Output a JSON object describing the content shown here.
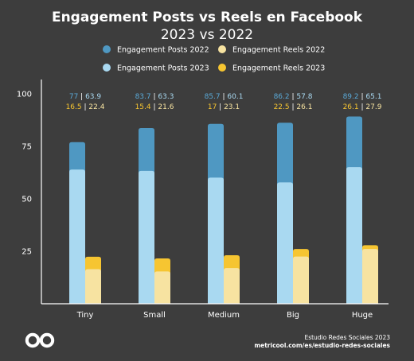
{
  "chart_data": {
    "type": "bar",
    "title": "Engagement Posts vs Reels en Facebook",
    "subtitle": "2023 vs 2022",
    "categories": [
      "Tiny",
      "Small",
      "Medium",
      "Big",
      "Huge"
    ],
    "ylim": [
      0,
      100
    ],
    "yticks": [
      25,
      50,
      75,
      100
    ],
    "series": [
      {
        "name": "Engagement Posts 2022",
        "values": [
          77,
          83.7,
          85.7,
          86.2,
          89.2
        ],
        "labels": [
          "77",
          "83.7",
          "85.7",
          "86.2",
          "89.2"
        ],
        "color": "#4f98c2",
        "group": "posts",
        "layer": "back"
      },
      {
        "name": "Engagement Posts 2023",
        "values": [
          63.9,
          63.3,
          60.1,
          57.8,
          65.1
        ],
        "labels": [
          "63.9",
          "63.3",
          "60.1",
          "57.8",
          "65.1"
        ],
        "color": "#a9d9f1",
        "group": "posts",
        "layer": "front"
      },
      {
        "name": "Engagement Reels 2022",
        "values": [
          16.5,
          15.4,
          17,
          22.5,
          26.1
        ],
        "labels": [
          "16.5",
          "15.4",
          "17",
          "22.5",
          "26.1"
        ],
        "color": "#f7e3a1",
        "group": "reels",
        "layer": "front"
      },
      {
        "name": "Engagement Reels 2023",
        "values": [
          22.4,
          21.6,
          23.1,
          26.1,
          27.9
        ],
        "labels": [
          "22.4",
          "21.6",
          "23.1",
          "26.1",
          "27.9"
        ],
        "color": "#f6c531",
        "group": "reels",
        "layer": "back"
      }
    ],
    "data_label_colors": {
      "posts_2022": "#5aa8d6",
      "posts_2023": "#a9d9f1",
      "reels_2022": "#f6c531",
      "reels_2023": "#f7e3a1",
      "separator": "#ffffff"
    },
    "legend_position": "top",
    "grid": false
  },
  "footer": {
    "source": "Estudio Redes Sociales 2023",
    "url": "metricool.com/es/estudio-redes-sociales",
    "logo_icon": "metricool-infinity-logo"
  }
}
